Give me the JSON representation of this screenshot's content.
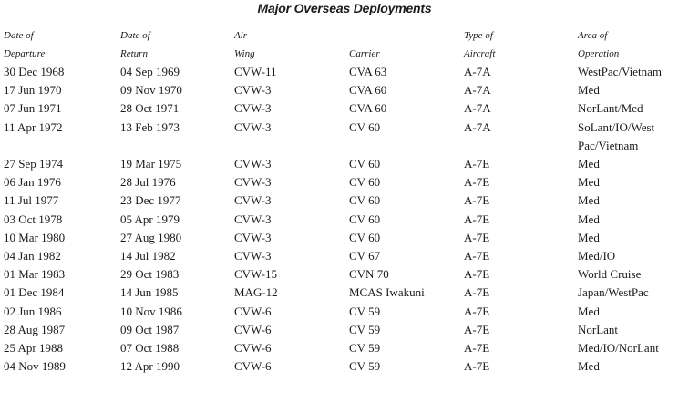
{
  "title": "Major Overseas Deployments",
  "headers": [
    [
      "Date of",
      "Departure"
    ],
    [
      "Date of",
      "Return"
    ],
    [
      "Air",
      "Wing"
    ],
    [
      "",
      "Carrier"
    ],
    [
      "Type of",
      "Aircraft"
    ],
    [
      "Area of",
      "Operation"
    ]
  ],
  "rows": [
    [
      "30 Dec 1968",
      "04 Sep 1969",
      "CVW-11",
      "CVA 63",
      "A-7A",
      "WestPac/Vietnam"
    ],
    [
      "17 Jun 1970",
      "09 Nov 1970",
      "CVW-3",
      "CVA 60",
      "A-7A",
      "Med"
    ],
    [
      "07 Jun 1971",
      "28 Oct 1971",
      "CVW-3",
      "CVA 60",
      "A-7A",
      "NorLant/Med"
    ],
    [
      "11 Apr 1972",
      "13 Feb 1973",
      "CVW-3",
      "CV 60",
      "A-7A",
      "SoLant/IO/West Pac/Vietnam"
    ],
    [
      "27 Sep 1974",
      "19 Mar 1975",
      "CVW-3",
      "CV 60",
      "A-7E",
      "Med"
    ],
    [
      "06 Jan 1976",
      "28 Jul 1976",
      "CVW-3",
      "CV 60",
      "A-7E",
      "Med"
    ],
    [
      "11 Jul 1977",
      "23 Dec 1977",
      "CVW-3",
      "CV 60",
      "A-7E",
      "Med"
    ],
    [
      "03 Oct 1978",
      "05 Apr 1979",
      "CVW-3",
      "CV 60",
      "A-7E",
      "Med"
    ],
    [
      "10 Mar 1980",
      "27 Aug 1980",
      "CVW-3",
      "CV 60",
      "A-7E",
      "Med"
    ],
    [
      "04 Jan 1982",
      "14 Jul 1982",
      "CVW-3",
      "CV 67",
      "A-7E",
      "Med/IO"
    ],
    [
      "01 Mar 1983",
      "29 Oct 1983",
      "CVW-15",
      "CVN 70",
      "A-7E",
      "World Cruise"
    ],
    [
      "01 Dec 1984",
      "14 Jun 1985",
      "MAG-12",
      "MCAS Iwakuni",
      "A-7E",
      "Japan/WestPac"
    ],
    [
      "02 Jun 1986",
      "10 Nov 1986",
      "CVW-6",
      "CV 59",
      "A-7E",
      "Med"
    ],
    [
      "28 Aug 1987",
      "09 Oct 1987",
      "CVW-6",
      "CV 59",
      "A-7E",
      "NorLant"
    ],
    [
      "25 Apr 1988",
      "07 Oct 1988",
      "CVW-6",
      "CV 59",
      "A-7E",
      "Med/IO/NorLant"
    ],
    [
      "04 Nov 1989",
      "12 Apr 1990",
      "CVW-6",
      "CV 59",
      "A-7E",
      "Med"
    ]
  ]
}
